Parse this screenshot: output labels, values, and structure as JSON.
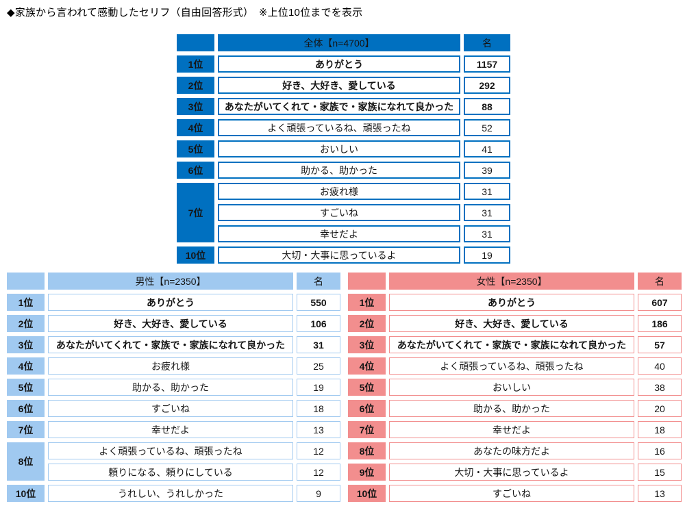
{
  "title": "◆家族から言われて感動したセリフ（自由回答形式）　※上位10位までを表示",
  "chart_data": {
    "type": "table",
    "title": "家族から言われて感動したセリフ（自由回答形式）上位10位",
    "tables": [
      {
        "name": "overall",
        "header": "全体【n=4700】",
        "unit": "名",
        "colors": {
          "fill": "#0070C0",
          "border": "#0070C0",
          "header_text": "#FFFFFF",
          "rank_text": "#FFFFFF"
        },
        "rows": [
          {
            "rank": "1位",
            "phrase": "ありがとう",
            "count": "1157",
            "bold": true
          },
          {
            "rank": "2位",
            "phrase": "好き、大好き、愛している",
            "count": "292",
            "bold": true
          },
          {
            "rank": "3位",
            "phrase": "あなたがいてくれて・家族で・家族になれて良かった",
            "count": "88",
            "bold": true
          },
          {
            "rank": "4位",
            "phrase": "よく頑張っているね、頑張ったね",
            "count": "52"
          },
          {
            "rank": "5位",
            "phrase": "おいしい",
            "count": "41"
          },
          {
            "rank": "6位",
            "phrase": "助かる、助かった",
            "count": "39"
          },
          {
            "rank": "7位",
            "rowspan": 3,
            "phrase": "お疲れ様",
            "count": "31"
          },
          {
            "phrase": "すごいね",
            "count": "31"
          },
          {
            "phrase": "幸せだよ",
            "count": "31"
          },
          {
            "rank": "10位",
            "phrase": "大切・大事に思っているよ",
            "count": "19"
          }
        ]
      },
      {
        "name": "male",
        "header": "男性【n=2350】",
        "unit": "名",
        "colors": {
          "fill": "#A0C9F0",
          "border": "#A0C9F0",
          "header_text": "#1A1A1A",
          "rank_text": "#1A1A1A"
        },
        "rows": [
          {
            "rank": "1位",
            "phrase": "ありがとう",
            "count": "550",
            "bold": true
          },
          {
            "rank": "2位",
            "phrase": "好き、大好き、愛している",
            "count": "106",
            "bold": true
          },
          {
            "rank": "3位",
            "phrase": "あなたがいてくれて・家族で・家族になれて良かった",
            "count": "31",
            "bold": true
          },
          {
            "rank": "4位",
            "phrase": "お疲れ様",
            "count": "25"
          },
          {
            "rank": "5位",
            "phrase": "助かる、助かった",
            "count": "19"
          },
          {
            "rank": "6位",
            "phrase": "すごいね",
            "count": "18"
          },
          {
            "rank": "7位",
            "phrase": "幸せだよ",
            "count": "13"
          },
          {
            "rank": "8位",
            "rowspan": 2,
            "phrase": "よく頑張っているね、頑張ったね",
            "count": "12"
          },
          {
            "phrase": "頼りになる、頼りにしている",
            "count": "12"
          },
          {
            "rank": "10位",
            "phrase": "うれしい、うれしかった",
            "count": "9"
          }
        ]
      },
      {
        "name": "female",
        "header": "女性【n=2350】",
        "unit": "名",
        "colors": {
          "fill": "#F28E8E",
          "border": "#F28E8E",
          "header_text": "#1A1A1A",
          "rank_text": "#1A1A1A"
        },
        "rows": [
          {
            "rank": "1位",
            "phrase": "ありがとう",
            "count": "607",
            "bold": true
          },
          {
            "rank": "2位",
            "phrase": "好き、大好き、愛している",
            "count": "186",
            "bold": true
          },
          {
            "rank": "3位",
            "phrase": "あなたがいてくれて・家族で・家族になれて良かった",
            "count": "57",
            "bold": true
          },
          {
            "rank": "4位",
            "phrase": "よく頑張っているね、頑張ったね",
            "count": "40"
          },
          {
            "rank": "5位",
            "phrase": "おいしい",
            "count": "38"
          },
          {
            "rank": "6位",
            "phrase": "助かる、助かった",
            "count": "20"
          },
          {
            "rank": "7位",
            "phrase": "幸せだよ",
            "count": "18"
          },
          {
            "rank": "8位",
            "phrase": "あなたの味方だよ",
            "count": "16"
          },
          {
            "rank": "9位",
            "phrase": "大切・大事に思っているよ",
            "count": "15"
          },
          {
            "rank": "10位",
            "phrase": "すごいね",
            "count": "13"
          }
        ]
      }
    ]
  }
}
